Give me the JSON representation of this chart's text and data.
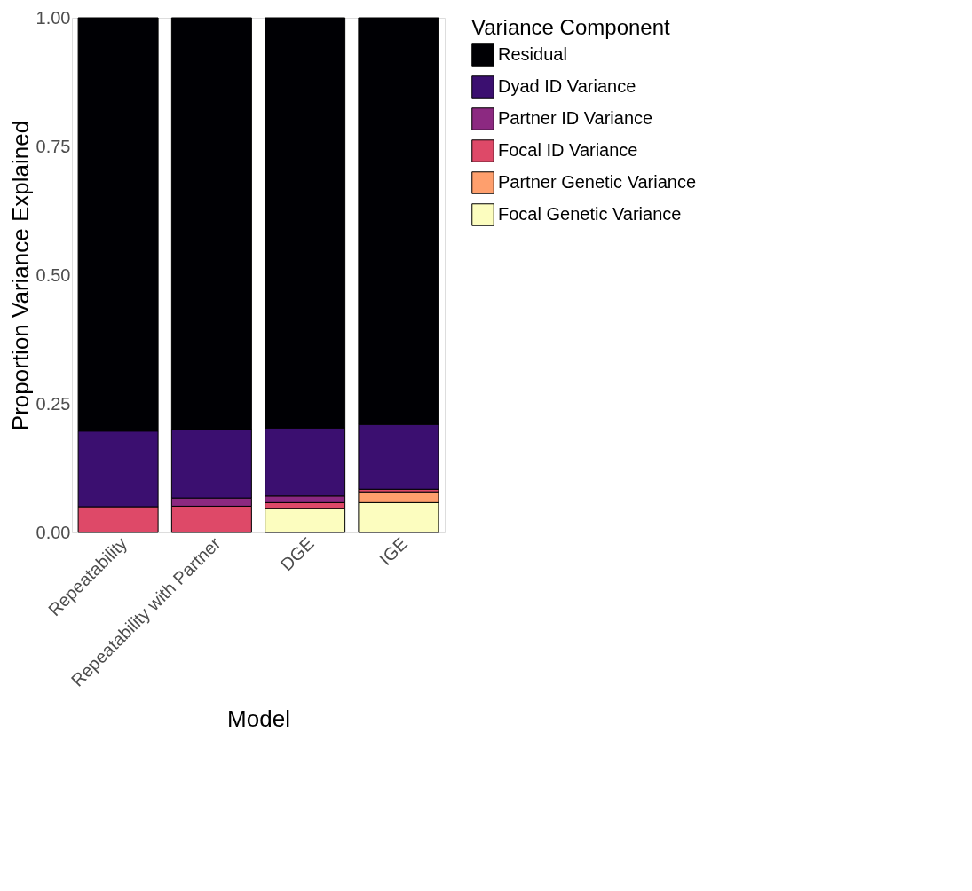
{
  "chart_data": {
    "type": "bar",
    "stacked": true,
    "xlabel": "Model",
    "ylabel": "Proportion Variance Explained",
    "legend_title": "Variance Component",
    "legend": "right",
    "grid": false,
    "categories": [
      "Repeatability",
      "Repeatability with Partner",
      "DGE",
      "IGE"
    ],
    "ylim": [
      0,
      1
    ],
    "yticks": [
      {
        "value": 0,
        "label": "0.00"
      },
      {
        "value": 0.25,
        "label": "0.25"
      },
      {
        "value": 0.5,
        "label": "0.50"
      },
      {
        "value": 0.75,
        "label": "0.75"
      },
      {
        "value": 1,
        "label": "1.00"
      }
    ],
    "series": [
      {
        "name": "Focal Genetic Variance",
        "color": "#fcfdbf",
        "values": [
          null,
          null,
          0.047,
          0.058
        ]
      },
      {
        "name": "Partner Genetic Variance",
        "color": "#fe9f6d",
        "values": [
          null,
          null,
          null,
          0.021
        ]
      },
      {
        "name": "Focal ID Variance",
        "color": "#de4968",
        "values": [
          0.05,
          0.051,
          0.011,
          0.005
        ]
      },
      {
        "name": "Partner ID Variance",
        "color": "#8c2981",
        "values": [
          null,
          0.016,
          0.013,
          null
        ]
      },
      {
        "name": "Dyad ID Variance",
        "color": "#3b0f70",
        "values": [
          0.147,
          0.133,
          0.132,
          0.126
        ]
      },
      {
        "name": "Residual",
        "color": "#000004",
        "values": [
          0.803,
          0.8,
          0.797,
          0.79
        ]
      }
    ]
  }
}
